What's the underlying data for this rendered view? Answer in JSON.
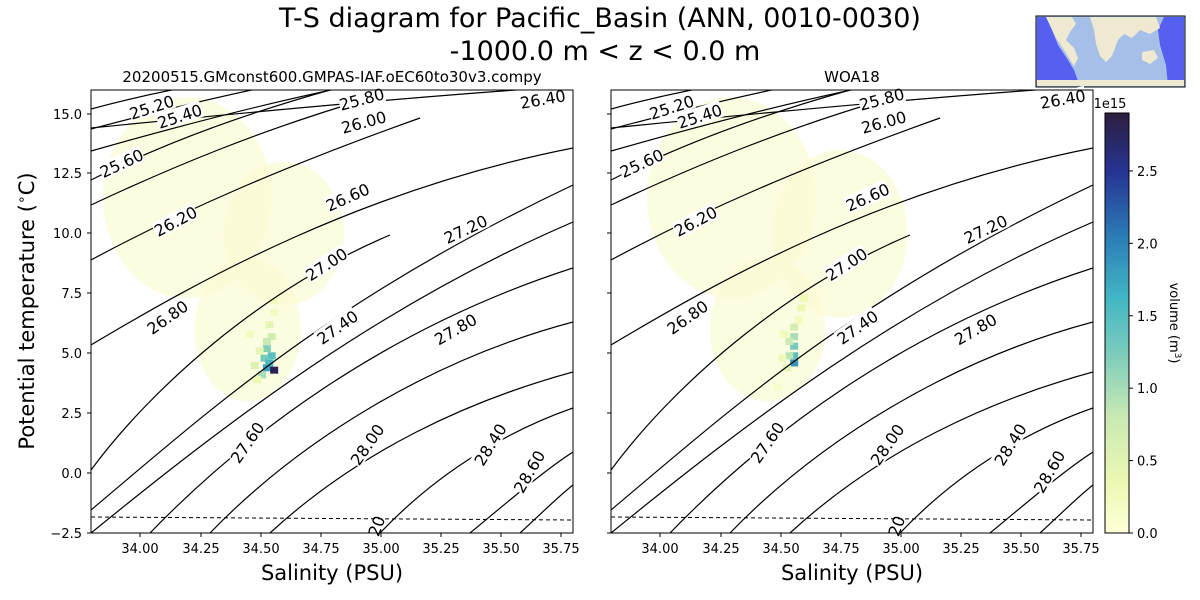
{
  "title_line1": "T-S diagram for Pacific_Basin (ANN, 0010-0030)",
  "title_line2": "-1000.0 m < z < 0.0 m",
  "chart_data": [
    {
      "type": "heatmap",
      "title": "20200515.GMconst600.GMPAS-IAF.oEC60to30v3.compy",
      "xlabel": "Salinity (PSU)",
      "ylabel": "Potential temperature ($^\\circ$C)",
      "xlim": [
        33.8,
        35.8
      ],
      "ylim": [
        -2.5,
        16.0
      ],
      "xticks": [
        "34.00",
        "34.25",
        "34.50",
        "34.75",
        "35.00",
        "35.25",
        "35.50",
        "35.75"
      ],
      "yticks": [
        "−2.5",
        "0.0",
        "2.5",
        "5.0",
        "7.5",
        "10.0",
        "12.5",
        "15.0"
      ],
      "freezing_line": [
        [
          33.8,
          -1.84
        ],
        [
          35.8,
          -1.94
        ]
      ],
      "freezing_label": "20",
      "density_contours": [
        "25.20",
        "25.40",
        "25.60",
        "25.80",
        "26.00",
        "26.20",
        "26.40",
        "26.60",
        "26.80",
        "27.00",
        "27.20",
        "27.40",
        "27.60",
        "27.80",
        "28.00",
        "28.40",
        "28.60"
      ],
      "volume_cells": [
        {
          "s": 34.56,
          "t": 7.2,
          "v": 0.3
        },
        {
          "s": 34.56,
          "t": 6.7,
          "v": 0.25
        },
        {
          "s": 34.54,
          "t": 6.2,
          "v": 0.5
        },
        {
          "s": 34.55,
          "t": 5.7,
          "v": 0.7
        },
        {
          "s": 34.53,
          "t": 5.5,
          "v": 0.8
        },
        {
          "s": 34.53,
          "t": 5.2,
          "v": 1.2
        },
        {
          "s": 34.55,
          "t": 4.9,
          "v": 1.5
        },
        {
          "s": 34.52,
          "t": 4.8,
          "v": 1.3
        },
        {
          "s": 34.54,
          "t": 4.6,
          "v": 1.6
        },
        {
          "s": 34.53,
          "t": 4.4,
          "v": 1.8
        },
        {
          "s": 34.56,
          "t": 4.3,
          "v": 2.8
        },
        {
          "s": 34.51,
          "t": 4.1,
          "v": 1.0
        },
        {
          "s": 34.48,
          "t": 4.5,
          "v": 0.6
        },
        {
          "s": 34.5,
          "t": 5.1,
          "v": 0.5
        },
        {
          "s": 34.46,
          "t": 5.8,
          "v": 0.3
        },
        {
          "s": 34.49,
          "t": 3.9,
          "v": 0.4
        }
      ]
    },
    {
      "type": "heatmap",
      "title": "WOA18",
      "xlabel": "Salinity (PSU)",
      "xlim": [
        33.8,
        35.8
      ],
      "ylim": [
        -2.5,
        16.0
      ],
      "xticks": [
        "34.00",
        "34.25",
        "34.50",
        "34.75",
        "35.00",
        "35.25",
        "35.50",
        "35.75"
      ],
      "freezing_line": [
        [
          33.8,
          -1.84
        ],
        [
          35.8,
          -1.94
        ]
      ],
      "freezing_label": "20",
      "density_contours": [
        "25.20",
        "25.40",
        "25.60",
        "25.80",
        "26.00",
        "26.20",
        "26.40",
        "26.60",
        "26.80",
        "27.00",
        "27.20",
        "27.40",
        "27.60",
        "27.80",
        "28.00",
        "28.40",
        "28.60"
      ],
      "volume_cells": [
        {
          "s": 34.6,
          "t": 7.3,
          "v": 0.35
        },
        {
          "s": 34.59,
          "t": 6.9,
          "v": 0.4
        },
        {
          "s": 34.58,
          "t": 6.4,
          "v": 0.3
        },
        {
          "s": 34.56,
          "t": 6.1,
          "v": 0.7
        },
        {
          "s": 34.56,
          "t": 5.7,
          "v": 1.0
        },
        {
          "s": 34.56,
          "t": 5.3,
          "v": 1.3
        },
        {
          "s": 34.56,
          "t": 4.9,
          "v": 1.5
        },
        {
          "s": 34.56,
          "t": 4.6,
          "v": 1.9
        },
        {
          "s": 34.54,
          "t": 5.5,
          "v": 0.8
        },
        {
          "s": 34.54,
          "t": 4.9,
          "v": 0.9
        },
        {
          "s": 34.53,
          "t": 4.4,
          "v": 0.5
        },
        {
          "s": 34.52,
          "t": 5.8,
          "v": 0.3
        },
        {
          "s": 34.51,
          "t": 4.8,
          "v": 0.35
        },
        {
          "s": 34.49,
          "t": 3.6,
          "v": 0.15
        }
      ]
    }
  ],
  "colorbar": {
    "label": "volume (m$^3$)",
    "scale_text": "1e15",
    "range": [
      0,
      2.9
    ],
    "ticks": [
      "0.0",
      "0.5",
      "1.0",
      "1.5",
      "2.0",
      "2.5"
    ],
    "colormap": [
      "#ffffd9",
      "#edf8b1",
      "#c7e9b4",
      "#7fcdbb",
      "#41b6c4",
      "#2c7fb8",
      "#253494",
      "#2d1e3e"
    ]
  },
  "inset_map": {
    "ocean": "#a6bfe8",
    "basin": "#5560f0",
    "land": "#efe9d2"
  }
}
